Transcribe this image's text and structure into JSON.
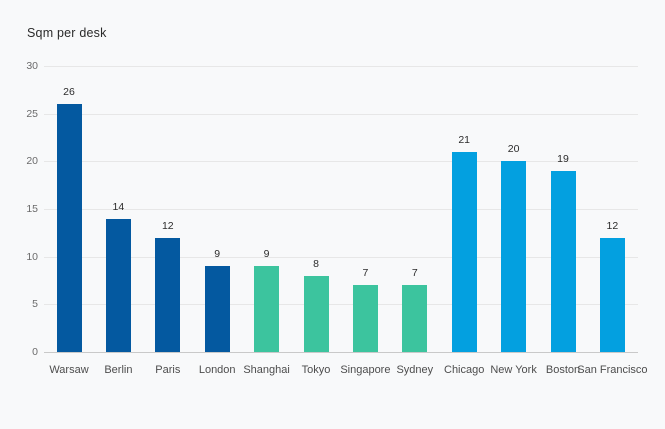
{
  "chart_data": {
    "type": "bar",
    "title": "Sqm per desk",
    "categories": [
      "Warsaw",
      "Berlin",
      "Paris",
      "London",
      "Shanghai",
      "Tokyo",
      "Singapore",
      "Sydney",
      "Chicago",
      "New York",
      "Boston",
      "San Francisco"
    ],
    "values": [
      26,
      14,
      12,
      9,
      9,
      8,
      7,
      7,
      21,
      20,
      19,
      12
    ],
    "bar_colors": [
      "#0459a0",
      "#0459a0",
      "#0459a0",
      "#0459a0",
      "#3cc49e",
      "#3cc49e",
      "#3cc49e",
      "#3cc49e",
      "#03a0e0",
      "#03a0e0",
      "#03a0e0",
      "#03a0e0"
    ],
    "value_labels": [
      "26",
      "14",
      "12",
      "9",
      "9",
      "8",
      "7",
      "7",
      "21",
      "20",
      "19",
      "12"
    ],
    "xlabel": "",
    "ylabel": "",
    "ylim": [
      0,
      30
    ],
    "yticks": [
      0,
      5,
      10,
      15,
      20,
      25,
      30
    ],
    "grid": true,
    "legend": false,
    "value_labels_shown": true
  },
  "colors": {
    "background": "#f8f9fa",
    "gridline": "#e7e7e7",
    "baseline": "#c9c9c9",
    "y_tick_label": "#6b6b6b",
    "x_category_label": "#4d4d4d",
    "value_label": "#2b2b2b",
    "title": "#2a2a2a"
  }
}
